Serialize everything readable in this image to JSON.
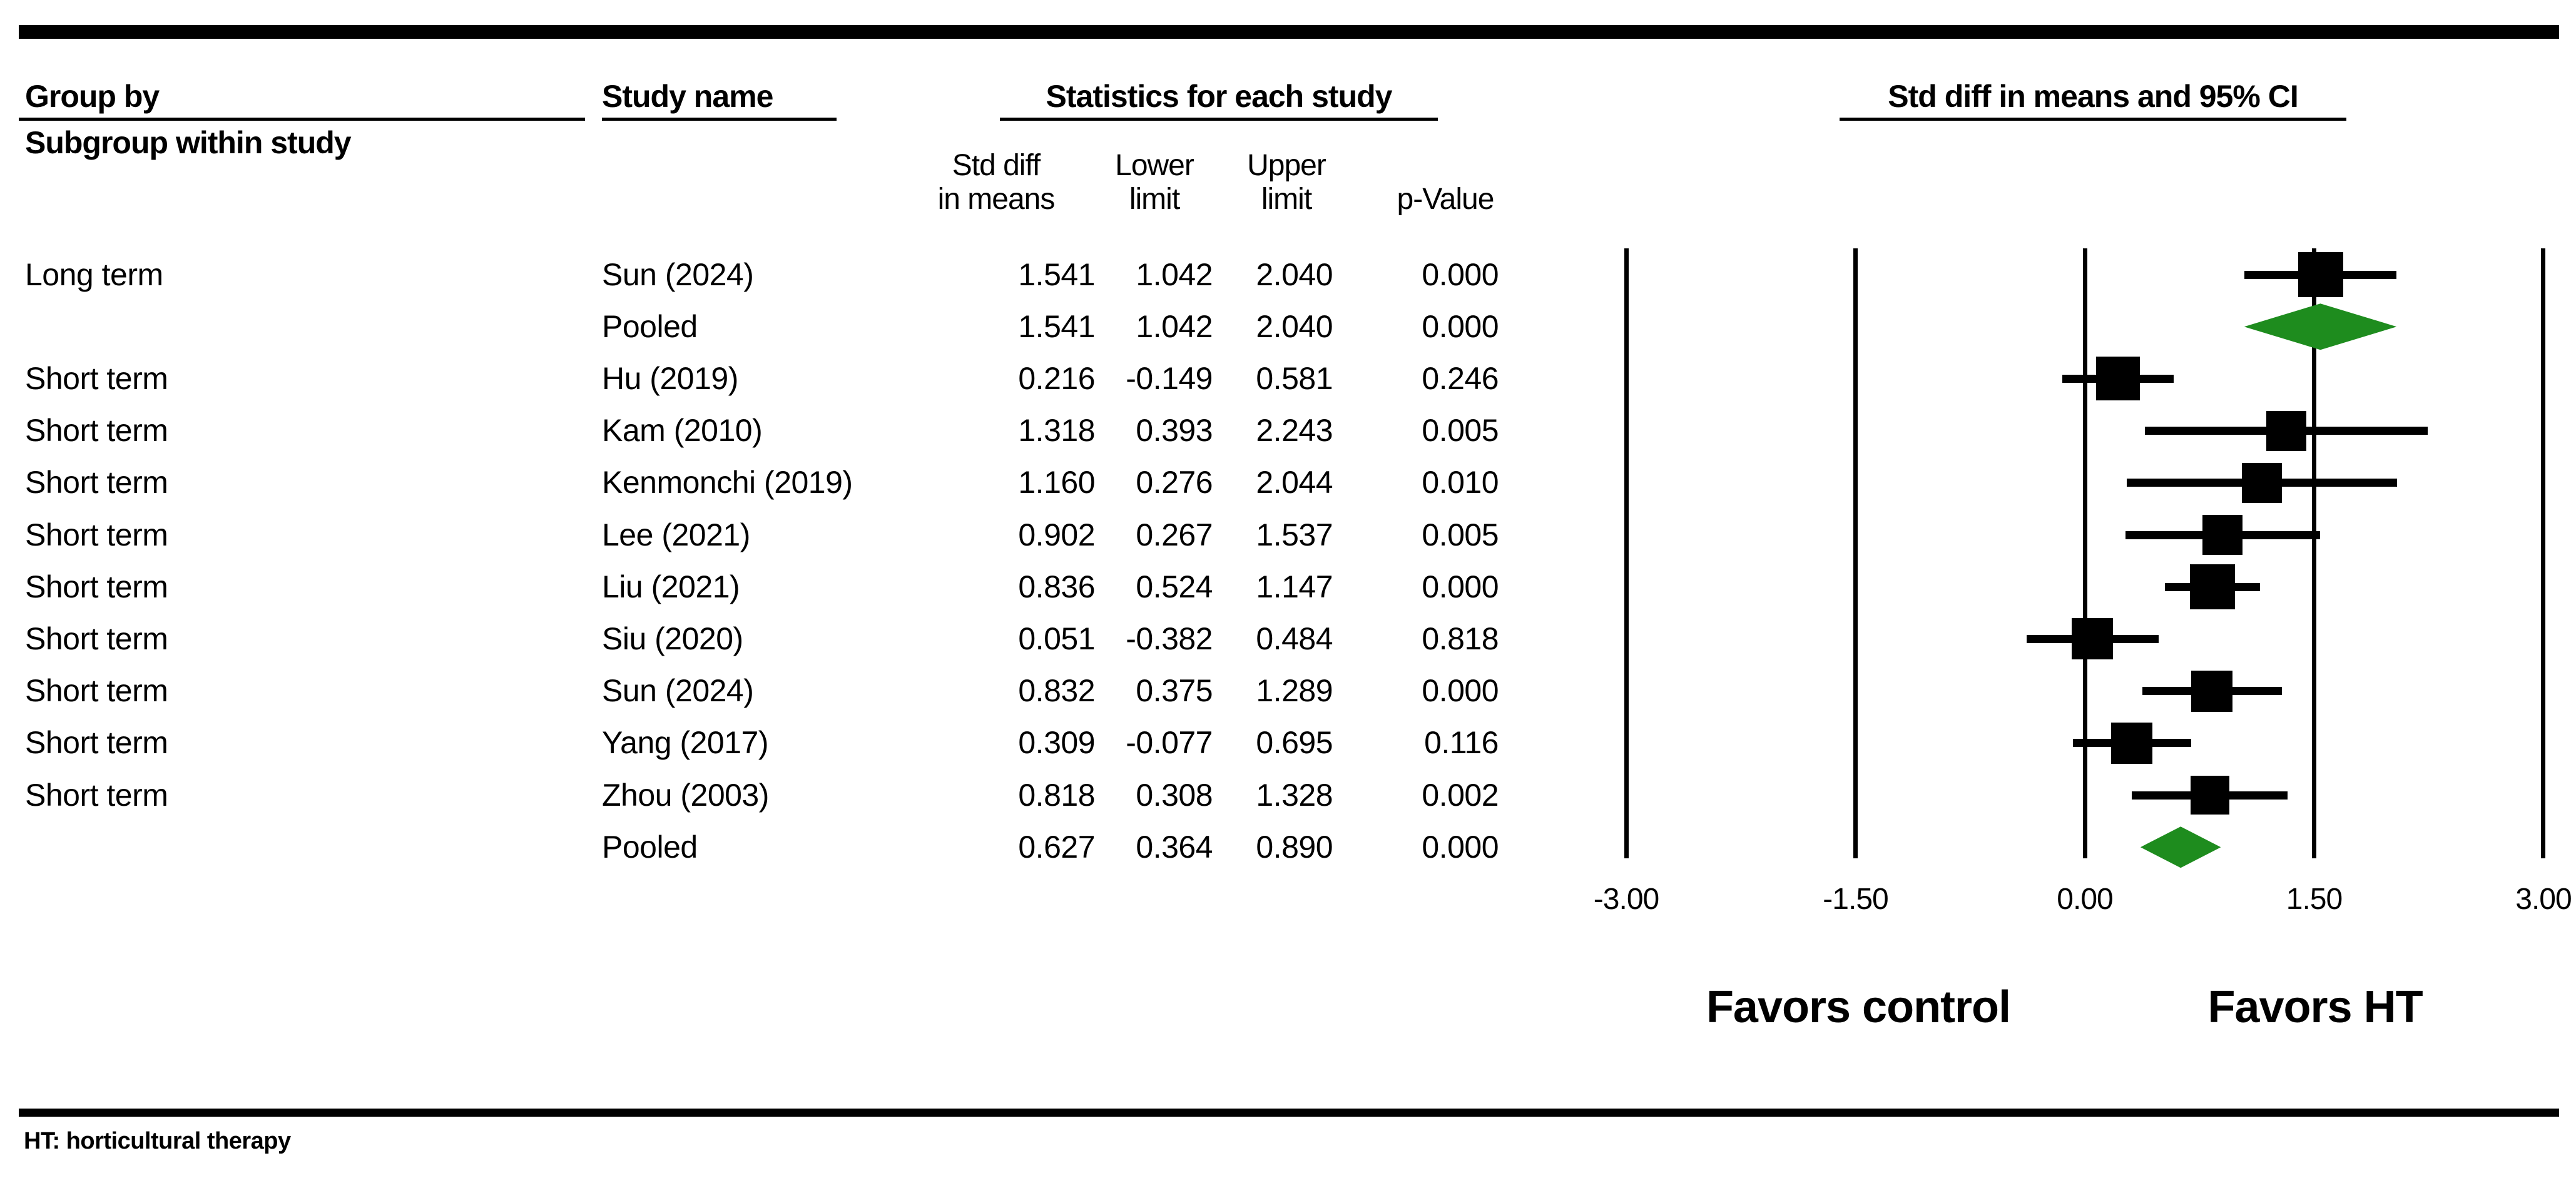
{
  "header": {
    "group_by": "Group by",
    "subgroup_within_study": "Subgroup within study",
    "study_name": "Study name",
    "statistics_title": "Statistics for each study",
    "plot_title": "Std diff in means and 95% CI",
    "col_std_diff_line1": "Std diff",
    "col_std_diff_line2": "in means",
    "col_lower_line1": "Lower",
    "col_lower_line2": "limit",
    "col_upper_line1": "Upper",
    "col_upper_line2": "limit",
    "col_p_value": "p-Value"
  },
  "footer": {
    "note": "HT: horticultural therapy"
  },
  "colors": {
    "marker_black": "#000000",
    "diamond_green": "#1e8c1e"
  },
  "chart_data": {
    "type": "forest",
    "effect_label": "Std diff in means",
    "xlim": [
      -3,
      3
    ],
    "x_ticks": [
      -3,
      -1.5,
      0,
      1.5,
      3
    ],
    "x_tick_labels": [
      "-3.00",
      "-1.50",
      "0.00",
      "1.50",
      "3.00"
    ],
    "favors_left": "Favors control",
    "favors_right": "Favors HT",
    "rows": [
      {
        "group": "Long term",
        "study": "Sun (2024)",
        "est": 1.541,
        "lower": 1.042,
        "upper": 2.04,
        "p": "0.000",
        "marker": "square",
        "size": 72
      },
      {
        "group": "",
        "study": "Pooled",
        "est": 1.541,
        "lower": 1.042,
        "upper": 2.04,
        "p": "0.000",
        "marker": "diamond",
        "size": 74
      },
      {
        "group": "Short term",
        "study": "Hu (2019)",
        "est": 0.216,
        "lower": -0.149,
        "upper": 0.581,
        "p": "0.246",
        "marker": "square",
        "size": 70
      },
      {
        "group": "Short term",
        "study": "Kam (2010)",
        "est": 1.318,
        "lower": 0.393,
        "upper": 2.243,
        "p": "0.005",
        "marker": "square",
        "size": 64
      },
      {
        "group": "Short term",
        "study": "Kenmonchi (2019)",
        "est": 1.16,
        "lower": 0.276,
        "upper": 2.044,
        "p": "0.010",
        "marker": "square",
        "size": 64
      },
      {
        "group": "Short term",
        "study": "Lee (2021)",
        "est": 0.902,
        "lower": 0.267,
        "upper": 1.537,
        "p": "0.005",
        "marker": "square",
        "size": 64
      },
      {
        "group": "Short term",
        "study": "Liu (2021)",
        "est": 0.836,
        "lower": 0.524,
        "upper": 1.147,
        "p": "0.000",
        "marker": "square",
        "size": 72
      },
      {
        "group": "Short term",
        "study": "Siu (2020)",
        "est": 0.051,
        "lower": -0.382,
        "upper": 0.484,
        "p": "0.818",
        "marker": "square",
        "size": 66
      },
      {
        "group": "Short term",
        "study": "Sun (2024)",
        "est": 0.832,
        "lower": 0.375,
        "upper": 1.289,
        "p": "0.000",
        "marker": "square",
        "size": 66
      },
      {
        "group": "Short term",
        "study": "Yang (2017)",
        "est": 0.309,
        "lower": -0.077,
        "upper": 0.695,
        "p": "0.116",
        "marker": "square",
        "size": 66
      },
      {
        "group": "Short term",
        "study": "Zhou (2003)",
        "est": 0.818,
        "lower": 0.308,
        "upper": 1.328,
        "p": "0.002",
        "marker": "square",
        "size": 62
      },
      {
        "group": "",
        "study": "Pooled",
        "est": 0.627,
        "lower": 0.364,
        "upper": 0.89,
        "p": "0.000",
        "marker": "diamond",
        "size": 66
      }
    ]
  }
}
